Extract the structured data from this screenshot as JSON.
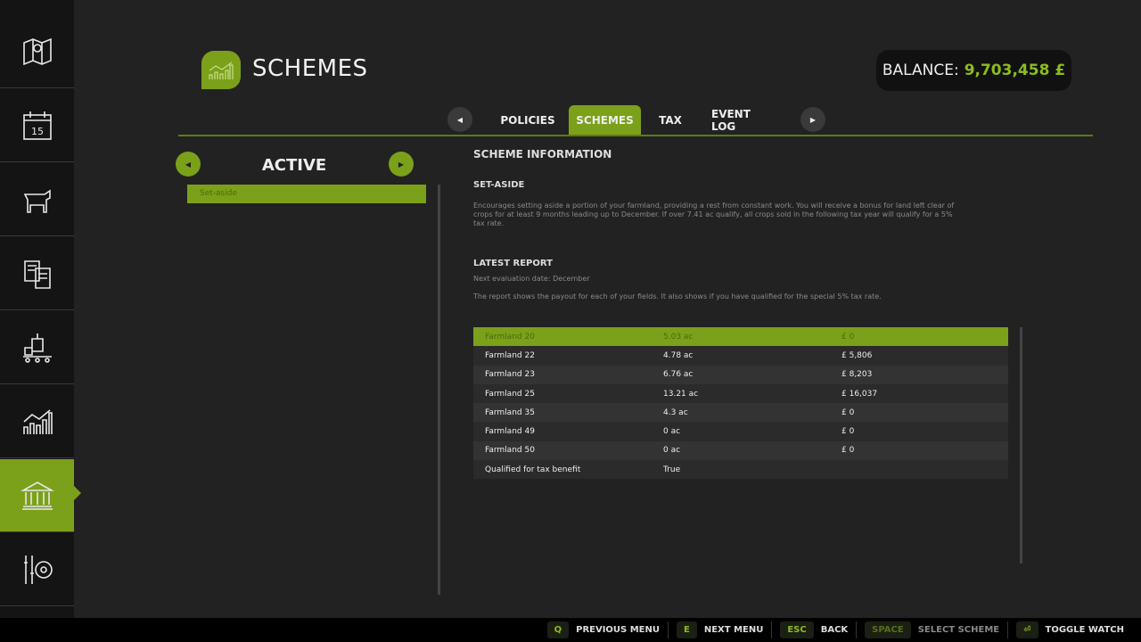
{
  "sidebar": {
    "items": [
      {
        "icon": "map-icon"
      },
      {
        "icon": "calendar-icon",
        "label": "15"
      },
      {
        "icon": "cow-icon"
      },
      {
        "icon": "contracts-icon"
      },
      {
        "icon": "production-icon"
      },
      {
        "icon": "statistics-icon"
      },
      {
        "icon": "bank-icon",
        "active": true
      },
      {
        "icon": "settings-icon"
      }
    ]
  },
  "header": {
    "title": "SCHEMES",
    "balance_label": "BALANCE:",
    "balance_value": "9,703,458 £"
  },
  "tabs": [
    {
      "label": "POLICIES"
    },
    {
      "label": "SCHEMES",
      "active": true
    },
    {
      "label": "TAX"
    },
    {
      "label": "EVENT LOG"
    }
  ],
  "list": {
    "title": "ACTIVE",
    "items": [
      "Set-aside"
    ]
  },
  "info": {
    "heading": "SCHEME INFORMATION",
    "scheme_name": "SET-ASIDE",
    "description": "Encourages setting aside a portion of your farmland, providing a rest from constant work. You will receive a bonus for land left clear of crops for at least 9 months leading up to December. If over 7.41 ac qualify, all crops sold in the following tax year will qualify for a 5% tax rate.",
    "report_heading": "LATEST REPORT",
    "next_eval": "Next evaluation date: December",
    "report_desc": "The report shows the payout for each of your fields. It also shows if you have qualified for the special 5% tax rate."
  },
  "report": [
    [
      "Farmland 20",
      "5.03 ac",
      "£ 0"
    ],
    [
      "Farmland 22",
      "4.78 ac",
      "£ 5,806"
    ],
    [
      "Farmland 23",
      "6.76 ac",
      "£ 8,203"
    ],
    [
      "Farmland 25",
      "13.21 ac",
      "£ 16,037"
    ],
    [
      "Farmland 35",
      "4.3 ac",
      "£ 0"
    ],
    [
      "Farmland 49",
      "0 ac",
      "£ 0"
    ],
    [
      "Farmland 50",
      "0 ac",
      "£ 0"
    ],
    [
      "Qualified for tax benefit",
      "True",
      ""
    ]
  ],
  "hints": [
    {
      "key": "Q",
      "label": "PREVIOUS MENU"
    },
    {
      "key": "E",
      "label": "NEXT MENU"
    },
    {
      "key": "ESC",
      "label": "BACK"
    },
    {
      "key": "SPACE",
      "label": "SELECT SCHEME",
      "disabled": true
    },
    {
      "key": "⏎",
      "label": "TOGGLE WATCH"
    }
  ],
  "colors": {
    "accent": "#7ba01a",
    "balance": "#8dbb1f"
  }
}
